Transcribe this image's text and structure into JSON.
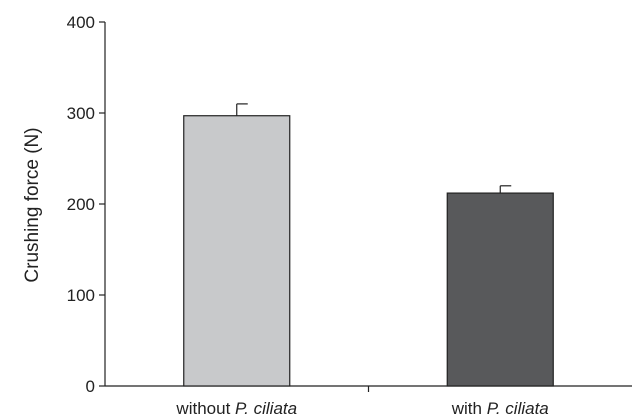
{
  "chart_data": {
    "type": "bar",
    "title": "",
    "xlabel": "",
    "ylabel": "Crushing force (N)",
    "ylim": [
      0,
      400
    ],
    "yticks": [
      0,
      100,
      200,
      300,
      400
    ],
    "grid": false,
    "categories": [
      {
        "prefix": "without ",
        "italic": "P. ciliata"
      },
      {
        "prefix": "with ",
        "italic": "P. ciliata"
      }
    ],
    "values": [
      297,
      212
    ],
    "errors": [
      13,
      8
    ],
    "colors": [
      "#c8c9cb",
      "#58595b"
    ]
  }
}
